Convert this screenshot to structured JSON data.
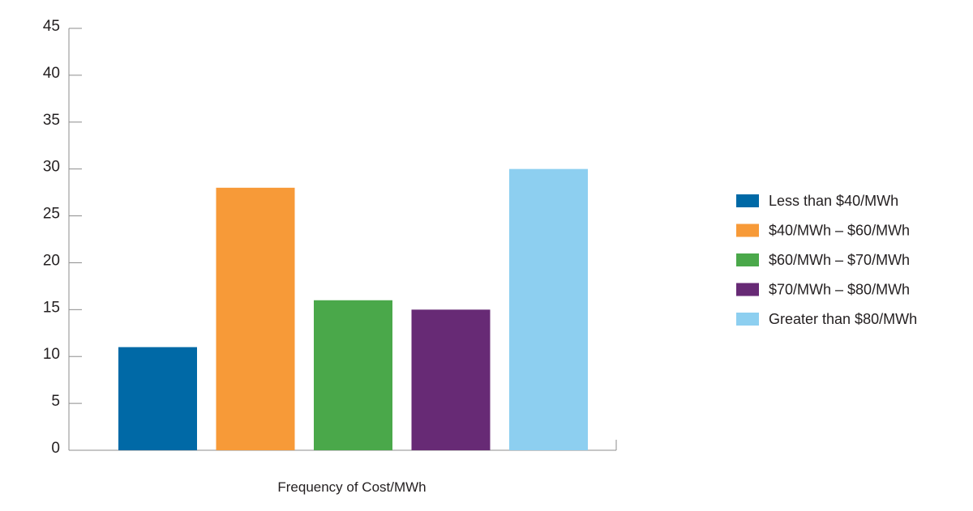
{
  "chart_data": {
    "type": "bar",
    "xlabel": "Frequency of Cost/MWh",
    "ylabel": "",
    "ylim": [
      0,
      45
    ],
    "yticks": [
      0,
      5,
      10,
      15,
      20,
      25,
      30,
      35,
      40,
      45
    ],
    "grid": false,
    "legend_position": "right",
    "series": [
      {
        "name": "Less than $40/MWh",
        "value": 11,
        "color": "#0069a6"
      },
      {
        "name": "$40/MWh – $60/MWh",
        "value": 28,
        "color": "#f79a38"
      },
      {
        "name": "$60/MWh – $70/MWh",
        "value": 16,
        "color": "#4aa84a"
      },
      {
        "name": "$70/MWh – $80/MWh",
        "value": 15,
        "color": "#672a75"
      },
      {
        "name": "Greater than $80/MWh",
        "value": 30,
        "color": "#8dcff0"
      }
    ]
  }
}
